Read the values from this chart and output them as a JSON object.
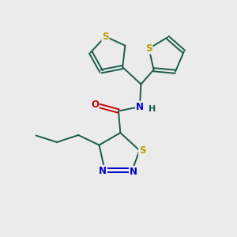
{
  "background_color": "#ebebeb",
  "atom_colors": {
    "S": "#b8a000",
    "N": "#0000cc",
    "O": "#cc0000",
    "C": "#1a5c4a",
    "H": "#1a5c4a"
  },
  "figsize": [
    3.0,
    3.0
  ],
  "dpi": 100,
  "lw": 1.4,
  "fs": 8.5,
  "xlim": [
    0,
    10
  ],
  "ylim": [
    0,
    10
  ]
}
